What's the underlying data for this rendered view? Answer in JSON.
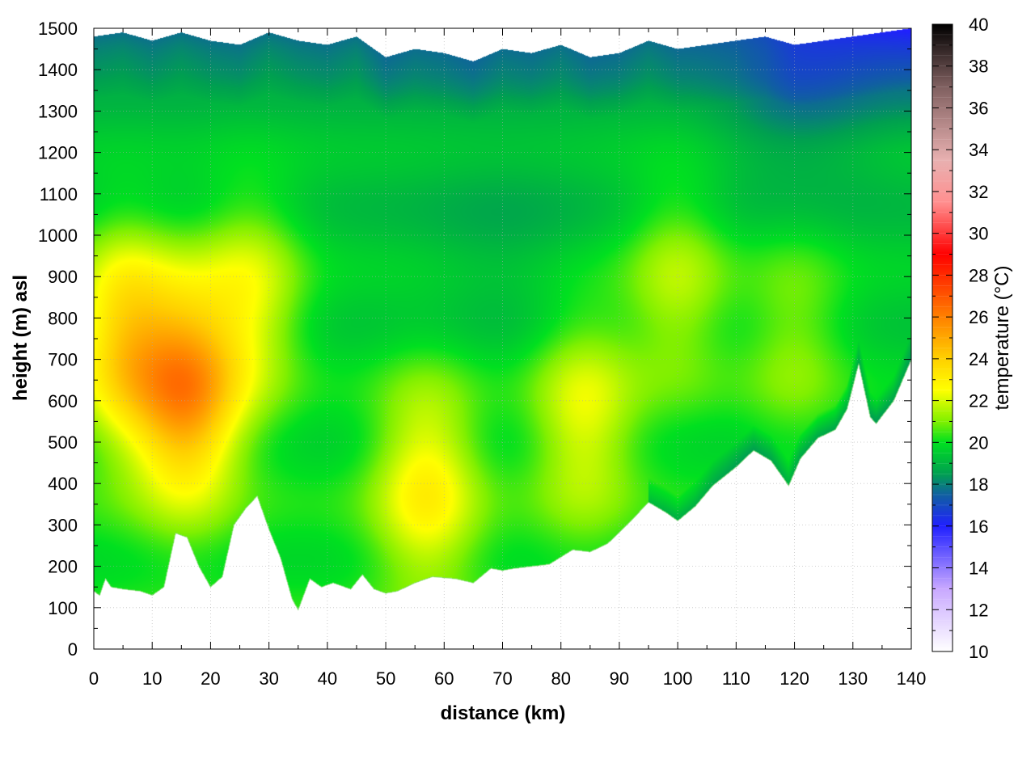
{
  "chart_data": {
    "type": "heatmap",
    "xlabel": "distance (km)",
    "ylabel": "height (m) asl",
    "colorbar_label": "temperature (°C)",
    "xlim": [
      0,
      140
    ],
    "ylim": [
      0,
      1500
    ],
    "x_ticks": [
      0,
      10,
      20,
      30,
      40,
      50,
      60,
      70,
      80,
      90,
      100,
      110,
      120,
      130,
      140
    ],
    "y_ticks": [
      0,
      100,
      200,
      300,
      400,
      500,
      600,
      700,
      800,
      900,
      1000,
      1100,
      1200,
      1300,
      1400,
      1500
    ],
    "colorbar_range": [
      10,
      40
    ],
    "colorbar_ticks": [
      10,
      12,
      14,
      16,
      18,
      20,
      22,
      24,
      26,
      28,
      30,
      32,
      34,
      36,
      38,
      40
    ],
    "colorbar_stops": [
      {
        "value": 10,
        "color": "#ffffff"
      },
      {
        "value": 13,
        "color": "#c8a8ff"
      },
      {
        "value": 16,
        "color": "#2020ff"
      },
      {
        "value": 17.5,
        "color": "#1060a0"
      },
      {
        "value": 18.5,
        "color": "#00a050"
      },
      {
        "value": 20,
        "color": "#00e020"
      },
      {
        "value": 21,
        "color": "#80f000"
      },
      {
        "value": 22.5,
        "color": "#ffff00"
      },
      {
        "value": 24,
        "color": "#ffd000"
      },
      {
        "value": 26,
        "color": "#ff8000"
      },
      {
        "value": 29,
        "color": "#ff0000"
      },
      {
        "value": 31.5,
        "color": "#ff9090"
      },
      {
        "value": 33.5,
        "color": "#e8b0b0"
      },
      {
        "value": 37,
        "color": "#806060"
      },
      {
        "value": 40,
        "color": "#000000"
      }
    ],
    "terrain_profile": {
      "distance_km": [
        0,
        1,
        2,
        3,
        5,
        8,
        10,
        12,
        14,
        16,
        18,
        20,
        22,
        24,
        26,
        28,
        30,
        32,
        34,
        35,
        37,
        39,
        41,
        44,
        46,
        48,
        50,
        52,
        55,
        58,
        62,
        65,
        68,
        70,
        72,
        75,
        78,
        82,
        85,
        88,
        92,
        95,
        98,
        100,
        103,
        106,
        110,
        113,
        116,
        119,
        121,
        124,
        127,
        129,
        131,
        133,
        134,
        137,
        140
      ],
      "ground_height_m": [
        140,
        130,
        170,
        150,
        145,
        140,
        130,
        150,
        280,
        270,
        200,
        150,
        175,
        300,
        340,
        370,
        290,
        220,
        120,
        95,
        170,
        150,
        160,
        145,
        180,
        145,
        135,
        140,
        160,
        175,
        170,
        160,
        195,
        190,
        195,
        200,
        205,
        240,
        235,
        255,
        310,
        355,
        330,
        310,
        345,
        395,
        440,
        480,
        455,
        395,
        460,
        510,
        530,
        580,
        690,
        560,
        545,
        600,
        700
      ]
    },
    "top_boundary": {
      "distance_km": [
        0,
        5,
        10,
        15,
        20,
        25,
        30,
        35,
        40,
        45,
        50,
        55,
        60,
        65,
        70,
        75,
        80,
        85,
        90,
        95,
        100,
        105,
        110,
        115,
        120,
        125,
        130,
        135,
        140
      ],
      "height_m": [
        1480,
        1490,
        1470,
        1490,
        1470,
        1460,
        1490,
        1470,
        1460,
        1480,
        1430,
        1450,
        1440,
        1420,
        1450,
        1440,
        1460,
        1430,
        1440,
        1470,
        1450,
        1460,
        1470,
        1480,
        1460,
        1470,
        1480,
        1490,
        1500
      ]
    },
    "hot_spots": [
      {
        "distance_km": 16,
        "height_m": 620,
        "temp_c": 25.5
      },
      {
        "distance_km": 5,
        "height_m": 760,
        "temp_c": 24
      },
      {
        "distance_km": 27,
        "height_m": 850,
        "temp_c": 22.5
      },
      {
        "distance_km": 57,
        "height_m": 400,
        "temp_c": 23
      },
      {
        "distance_km": 84,
        "height_m": 560,
        "temp_c": 22.5
      },
      {
        "distance_km": 100,
        "height_m": 880,
        "temp_c": 22
      },
      {
        "distance_km": 120,
        "height_m": 760,
        "temp_c": 21.5
      }
    ],
    "cool_spots": [
      {
        "distance_km": 70,
        "height_m": 980,
        "temp_c": 19.5
      },
      {
        "distance_km": 120,
        "height_m": 1300,
        "temp_c": 19
      }
    ],
    "grid": true
  }
}
